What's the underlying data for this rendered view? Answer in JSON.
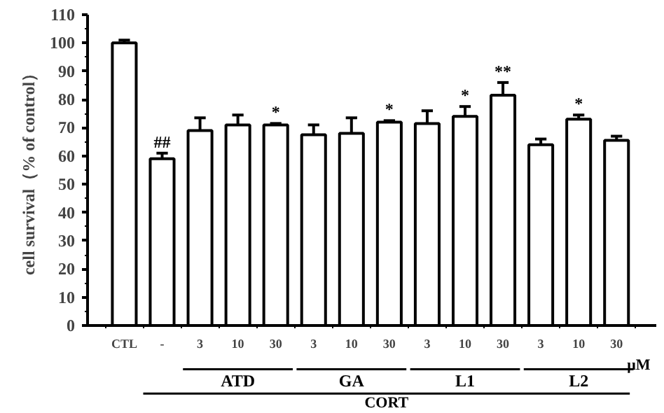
{
  "chart_data": {
    "type": "bar",
    "ylabel": "cell survival（% of control）",
    "categories": [
      "CTL",
      "-",
      "3",
      "10",
      "30",
      "3",
      "10",
      "30",
      "3",
      "10",
      "30",
      "3",
      "10",
      "30"
    ],
    "values": [
      100,
      59,
      69,
      71,
      71,
      67.5,
      68,
      72,
      71.5,
      74,
      81.5,
      64,
      73,
      65.5
    ],
    "errors": [
      1,
      2,
      4.5,
      3.5,
      0.5,
      3.5,
      5.5,
      0.5,
      4.5,
      3.5,
      4.5,
      2,
      1.5,
      1.5
    ],
    "value_labels": [
      null,
      "##",
      null,
      null,
      "*",
      null,
      null,
      "*",
      null,
      "*",
      "**",
      null,
      "*",
      null
    ],
    "color": "#ffffff",
    "ylim": [
      0,
      110
    ],
    "yticks": [
      0,
      10,
      20,
      30,
      40,
      50,
      60,
      70,
      80,
      90,
      100,
      110
    ],
    "grid": false,
    "annotations": [
      "μM",
      "ATD",
      "GA",
      "L1",
      "L2",
      "CORT"
    ]
  }
}
